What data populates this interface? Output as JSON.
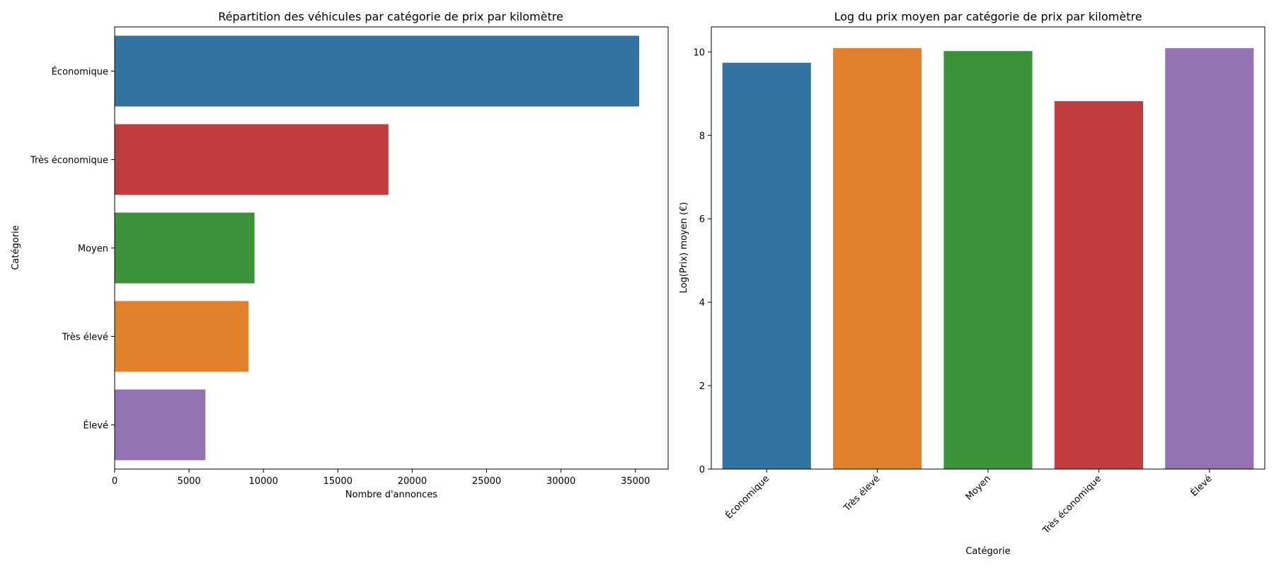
{
  "chart_data": [
    {
      "type": "bar",
      "orientation": "horizontal",
      "title": "Répartition des véhicules par catégorie de prix par kilomètre",
      "xlabel": "Nombre d'annonces",
      "ylabel": "Catégorie",
      "categories": [
        "Économique",
        "Très économique",
        "Moyen",
        "Très élevé",
        "Élevé"
      ],
      "values": [
        35250,
        18400,
        9400,
        9000,
        6100
      ],
      "colors": [
        "#3274a1",
        "#c03d3e",
        "#3a923a",
        "#e1812c",
        "#9372b2"
      ],
      "xlim": [
        0,
        37200
      ],
      "xticks": [
        0,
        5000,
        10000,
        15000,
        20000,
        25000,
        30000,
        35000
      ],
      "grid": false
    },
    {
      "type": "bar",
      "orientation": "vertical",
      "title": "Log du prix moyen par catégorie de prix par kilomètre",
      "xlabel": "Catégorie",
      "ylabel": "Log(Prix) moyen (€)",
      "categories": [
        "Économique",
        "Très élevé",
        "Moyen",
        "Très économique",
        "Élevé"
      ],
      "values": [
        9.74,
        10.09,
        10.02,
        8.82,
        10.09
      ],
      "colors": [
        "#3274a1",
        "#e1812c",
        "#3a923a",
        "#c03d3e",
        "#9372b2"
      ],
      "ylim": [
        0,
        10.6
      ],
      "yticks": [
        0,
        2,
        4,
        6,
        8,
        10
      ],
      "grid": false
    }
  ]
}
